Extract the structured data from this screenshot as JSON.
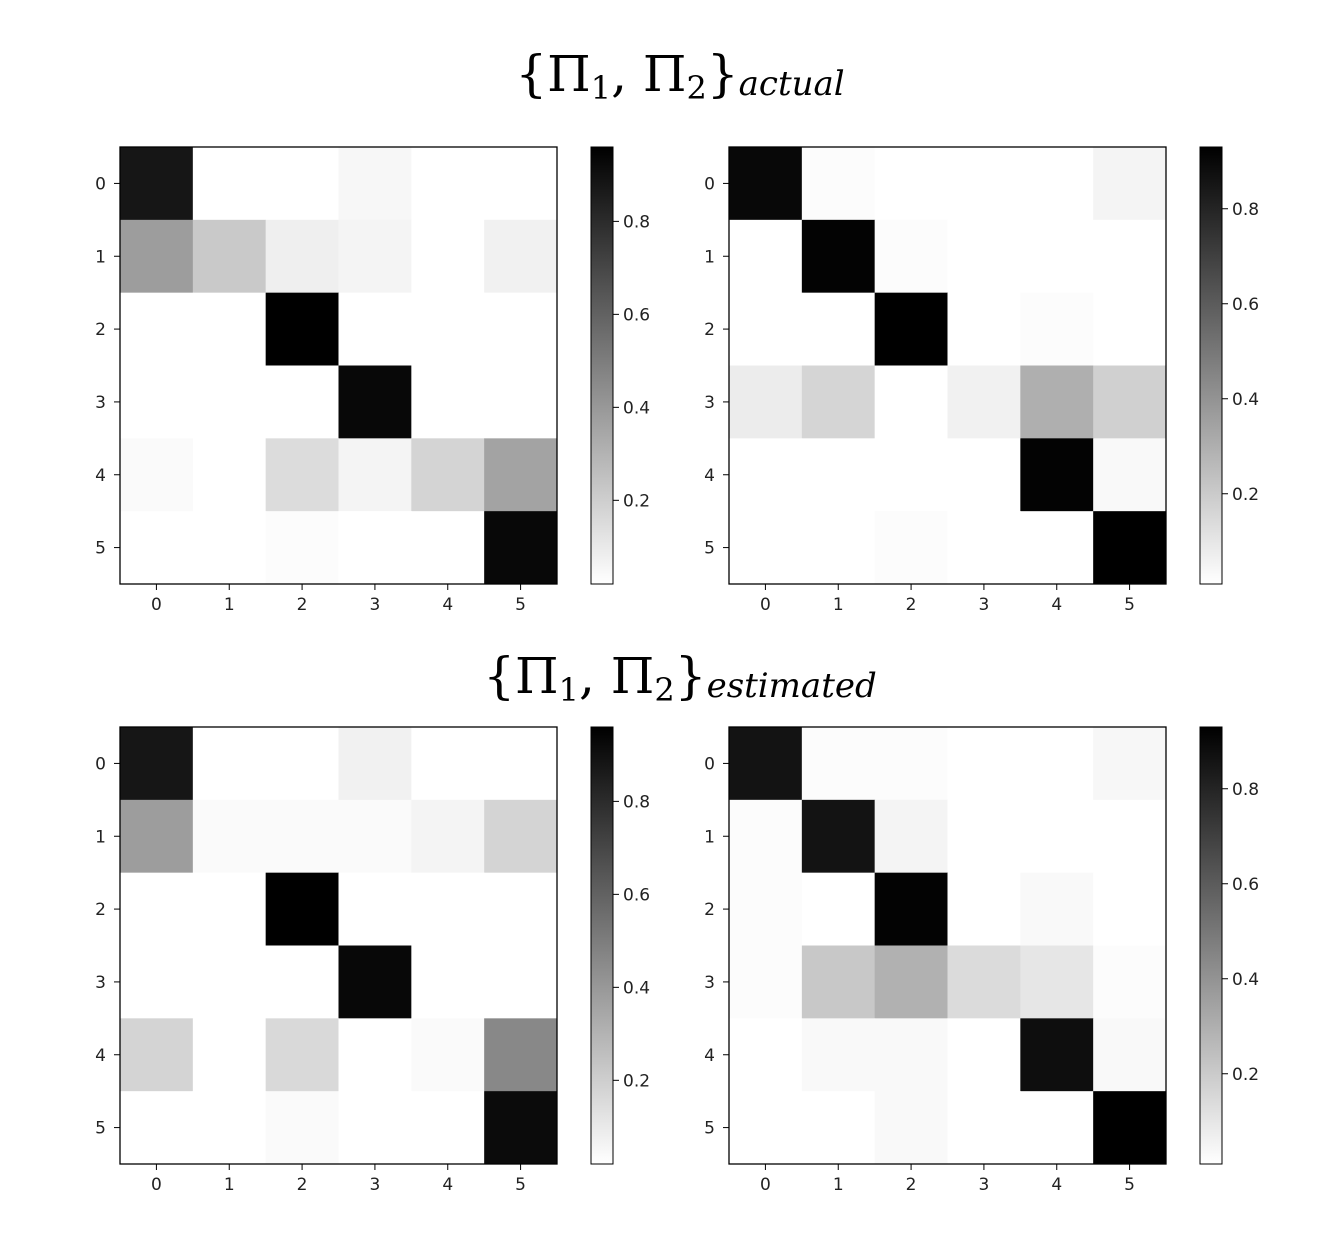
{
  "figure": {
    "title_top": {
      "main": "{Π1, Π2}",
      "base": "{Π",
      "sub1": "1",
      "mid": ", Π",
      "sub2": "2",
      "close": "}",
      "subscript": "actual"
    },
    "title_bottom": {
      "main": "{Π1, Π2}",
      "base": "{Π",
      "sub1": "1",
      "mid": ", Π",
      "sub2": "2",
      "close": "}",
      "subscript": "estimated"
    }
  },
  "chart_data": [
    {
      "type": "heatmap",
      "group": "actual",
      "panel": "left",
      "title": "",
      "x_ticks": [
        "0",
        "1",
        "2",
        "3",
        "4",
        "5"
      ],
      "y_ticks": [
        "0",
        "1",
        "2",
        "3",
        "4",
        "5"
      ],
      "colormap": "greys",
      "color_range": [
        0.02,
        0.96
      ],
      "colorbar_ticks": [
        0.2,
        0.4,
        0.6,
        0.8
      ],
      "values": [
        [
          0.88,
          0.0,
          0.02,
          0.05,
          0.0,
          0.0
        ],
        [
          0.38,
          0.22,
          0.08,
          0.06,
          0.0,
          0.07
        ],
        [
          0.0,
          0.0,
          0.96,
          0.0,
          0.0,
          0.01
        ],
        [
          0.01,
          0.0,
          0.02,
          0.93,
          0.0,
          0.0
        ],
        [
          0.04,
          0.0,
          0.15,
          0.06,
          0.18,
          0.36
        ],
        [
          0.02,
          0.0,
          0.03,
          0.01,
          0.0,
          0.93
        ]
      ]
    },
    {
      "type": "heatmap",
      "group": "actual",
      "panel": "right",
      "title": "",
      "x_ticks": [
        "0",
        "1",
        "2",
        "3",
        "4",
        "5"
      ],
      "y_ticks": [
        "0",
        "1",
        "2",
        "3",
        "4",
        "5"
      ],
      "colormap": "greys",
      "color_range": [
        0.01,
        0.93
      ],
      "colorbar_ticks": [
        0.2,
        0.4,
        0.6,
        0.8
      ],
      "values": [
        [
          0.9,
          0.02,
          0.0,
          0.0,
          0.01,
          0.05
        ],
        [
          0.01,
          0.92,
          0.02,
          0.0,
          0.01,
          0.0
        ],
        [
          0.01,
          0.0,
          0.93,
          0.0,
          0.02,
          0.0
        ],
        [
          0.08,
          0.16,
          0.0,
          0.06,
          0.3,
          0.18
        ],
        [
          0.0,
          0.0,
          0.01,
          0.0,
          0.92,
          0.03
        ],
        [
          0.0,
          0.01,
          0.02,
          0.0,
          0.0,
          0.93
        ]
      ]
    },
    {
      "type": "heatmap",
      "group": "estimated",
      "panel": "left",
      "title": "",
      "x_ticks": [
        "0",
        "1",
        "2",
        "3",
        "4",
        "5"
      ],
      "y_ticks": [
        "0",
        "1",
        "2",
        "3",
        "4",
        "5"
      ],
      "colormap": "greys",
      "color_range": [
        0.02,
        0.96
      ],
      "colorbar_ticks": [
        0.2,
        0.4,
        0.6,
        0.8
      ],
      "values": [
        [
          0.88,
          0.0,
          0.01,
          0.07,
          0.0,
          0.0
        ],
        [
          0.38,
          0.04,
          0.04,
          0.04,
          0.06,
          0.18
        ],
        [
          0.0,
          0.0,
          0.96,
          0.0,
          0.0,
          0.0
        ],
        [
          0.01,
          0.0,
          0.02,
          0.93,
          0.0,
          0.0
        ],
        [
          0.18,
          0.02,
          0.16,
          0.0,
          0.04,
          0.46
        ],
        [
          0.0,
          0.0,
          0.04,
          0.0,
          0.0,
          0.92
        ]
      ]
    },
    {
      "type": "heatmap",
      "group": "estimated",
      "panel": "right",
      "title": "",
      "x_ticks": [
        "0",
        "1",
        "2",
        "3",
        "4",
        "5"
      ],
      "y_ticks": [
        "0",
        "1",
        "2",
        "3",
        "4",
        "5"
      ],
      "colormap": "greys",
      "color_range": [
        0.01,
        0.93
      ],
      "colorbar_ticks": [
        0.2,
        0.4,
        0.6,
        0.8
      ],
      "values": [
        [
          0.86,
          0.02,
          0.02,
          0.0,
          0.0,
          0.04
        ],
        [
          0.02,
          0.86,
          0.05,
          0.0,
          0.0,
          0.0
        ],
        [
          0.02,
          0.0,
          0.92,
          0.0,
          0.03,
          0.0
        ],
        [
          0.02,
          0.21,
          0.29,
          0.14,
          0.1,
          0.02
        ],
        [
          0.0,
          0.03,
          0.03,
          0.0,
          0.88,
          0.03
        ],
        [
          0.0,
          0.0,
          0.03,
          0.0,
          0.0,
          0.93
        ]
      ]
    }
  ]
}
